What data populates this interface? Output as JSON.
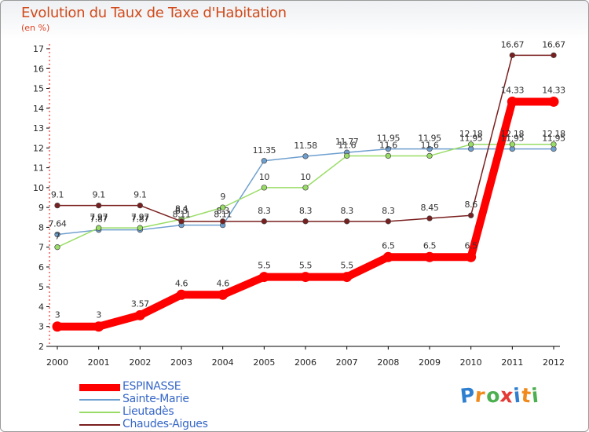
{
  "header": {
    "title": "Evolution du Taux de Taxe d'Habitation",
    "unit_label": "(en %)"
  },
  "chart_data": {
    "type": "line",
    "title": "Evolution du Taux de Taxe d'Habitation",
    "ylabel": "(en %)",
    "xlabel": "",
    "ylim": [
      2,
      17
    ],
    "yticks": [
      2,
      3,
      4,
      5,
      6,
      7,
      8,
      9,
      10,
      11,
      12,
      13,
      14,
      15,
      16,
      17
    ],
    "categories": [
      "2000",
      "2001",
      "2002",
      "2003",
      "2004",
      "2005",
      "2006",
      "2007",
      "2008",
      "2009",
      "2010",
      "2011",
      "2012"
    ],
    "grid": false,
    "legend_position": "bottom-left",
    "series": [
      {
        "name": "ESPINASSE",
        "color": "#ff0000",
        "values": [
          3,
          3,
          3.57,
          4.6,
          4.6,
          5.5,
          5.5,
          5.5,
          6.5,
          6.5,
          6.5,
          14.33,
          14.33
        ],
        "labels": [
          "3",
          "3",
          "3.57",
          "4.6",
          "4.6",
          "5.5",
          "5.5",
          "5.5",
          "6.5",
          "6.5",
          "6.5",
          "14.33",
          "14.33"
        ]
      },
      {
        "name": "Sainte-Marie",
        "color": "#6f9fcf",
        "values": [
          7.64,
          7.87,
          7.87,
          8.11,
          8.11,
          11.35,
          11.58,
          11.77,
          11.95,
          11.95,
          11.95,
          11.95,
          11.95
        ],
        "labels": [
          "7.64",
          "7.87",
          "7.87",
          "8.11",
          "8.11",
          "11.35",
          "11.58",
          "11.77",
          "11.95",
          "11.95",
          "11.95",
          "11.95",
          "11.95"
        ]
      },
      {
        "name": "Lieutadès",
        "color": "#99dd66",
        "values": [
          7,
          7.97,
          7.97,
          8.4,
          9,
          10,
          10,
          11.6,
          11.6,
          11.6,
          12.18,
          12.18,
          12.18
        ],
        "labels": [
          "7",
          "7.97",
          "7.97",
          "8.4",
          "9",
          "10",
          "10",
          "11.6",
          "11.6",
          "11.6",
          "12.18",
          "12.18",
          "12.18"
        ]
      },
      {
        "name": "Chaudes-Aigues",
        "color": "#7a1f1f",
        "values": [
          9.1,
          9.1,
          9.1,
          8.3,
          8.3,
          8.3,
          8.3,
          8.3,
          8.3,
          8.45,
          8.6,
          16.67,
          16.67
        ],
        "labels": [
          "9.1",
          "9.1",
          "9.1",
          "8.3",
          "8.3",
          "8.3",
          "8.3",
          "8.3",
          "8.3",
          "8.45",
          "8.6",
          "16.67",
          "16.67"
        ]
      }
    ]
  },
  "logo": {
    "letters": [
      "P",
      "r",
      "o",
      "x",
      "i",
      "t",
      "i"
    ],
    "colors": [
      "#2f7fd0",
      "#f08a1c",
      "#4caf50",
      "#e53935",
      "#2f7fd0",
      "#f08a1c",
      "#4caf50"
    ]
  }
}
